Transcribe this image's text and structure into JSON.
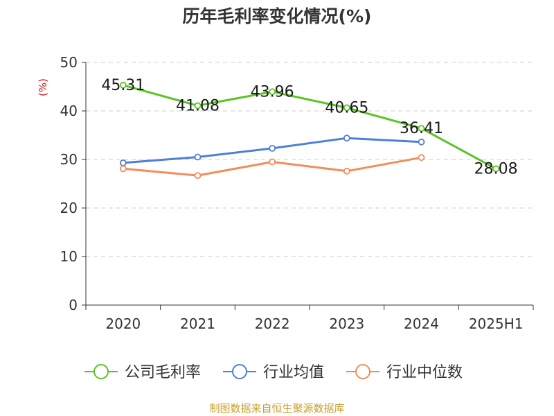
{
  "chart_data": {
    "type": "line",
    "title": "历年毛利率变化情况(%)",
    "ylabel": "(%)",
    "categories": [
      "2020",
      "2021",
      "2022",
      "2023",
      "2024",
      "2025H1"
    ],
    "ylim": [
      0,
      50
    ],
    "yticks": [
      0,
      10,
      20,
      30,
      40,
      50
    ],
    "grid": true,
    "legend_position": "bottom",
    "series": [
      {
        "name": "公司毛利率",
        "color": "#5ac424",
        "values": [
          45.31,
          41.08,
          43.96,
          40.65,
          36.41,
          28.08
        ],
        "labels": [
          "45.31",
          "41.08",
          "43.96",
          "40.65",
          "36.41",
          "28.08"
        ]
      },
      {
        "name": "行业均值",
        "color": "#4e7fd8",
        "values": [
          29.3,
          30.5,
          32.3,
          34.4,
          33.6,
          null
        ]
      },
      {
        "name": "行业中位数",
        "color": "#f28d5a",
        "values": [
          28.1,
          26.7,
          29.5,
          27.6,
          30.4,
          null
        ]
      }
    ]
  },
  "source_text": "制图数据来自恒生聚源数据库"
}
